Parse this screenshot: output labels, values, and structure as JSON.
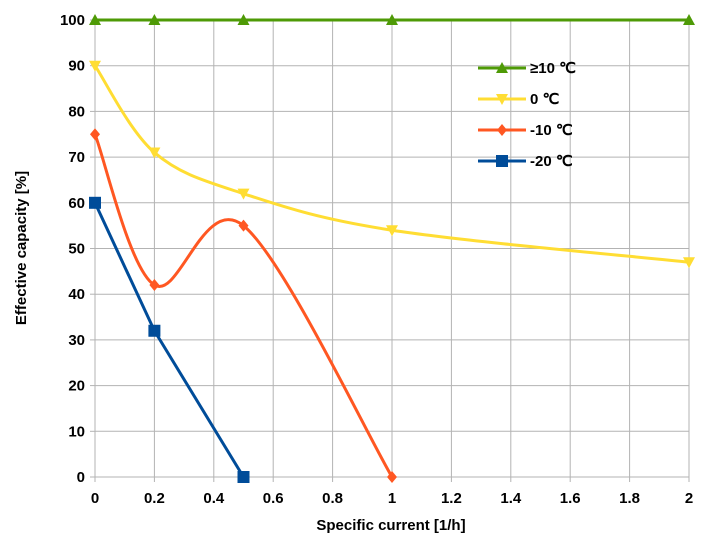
{
  "chart_data": {
    "type": "line",
    "title": "",
    "xlabel": "Specific current [1/h]",
    "ylabel": "Effective capacity [%]",
    "xlim": [
      0,
      2
    ],
    "ylim": [
      0,
      100
    ],
    "xticks": [
      0,
      0.2,
      0.4,
      0.6,
      0.8,
      1,
      1.2,
      1.4,
      1.6,
      1.8,
      2
    ],
    "xtick_labels": [
      "0",
      "0.2",
      "0.4",
      "0.6",
      "0.8",
      "1",
      "1.2",
      "1.4",
      "1.6",
      "1.8",
      "2"
    ],
    "yticks": [
      0,
      10,
      20,
      30,
      40,
      50,
      60,
      70,
      80,
      90,
      100
    ],
    "ytick_labels": [
      "0",
      "10",
      "20",
      "30",
      "40",
      "50",
      "60",
      "70",
      "80",
      "90",
      "100"
    ],
    "grid": true,
    "legend_position": "top-right",
    "series": [
      {
        "name": "≥10 ℃",
        "color": "#4e9a06",
        "marker": "triangle-up",
        "x": [
          0,
          0.2,
          0.5,
          1,
          2
        ],
        "y": [
          100,
          100,
          100,
          100,
          100
        ]
      },
      {
        "name": "0 ℃",
        "color": "#ffdd33",
        "marker": "triangle-down",
        "x": [
          0,
          0.2,
          0.5,
          1,
          2
        ],
        "y": [
          90,
          71,
          62,
          54,
          47
        ]
      },
      {
        "name": "-10 ℃",
        "color": "#ff5722",
        "marker": "diamond",
        "x": [
          0,
          0.2,
          0.5,
          1
        ],
        "y": [
          75,
          42,
          55,
          0
        ]
      },
      {
        "name": "-20 ℃",
        "color": "#004c99",
        "marker": "square",
        "x": [
          0,
          0.2,
          0.5
        ],
        "y": [
          60,
          32,
          0
        ]
      }
    ]
  }
}
